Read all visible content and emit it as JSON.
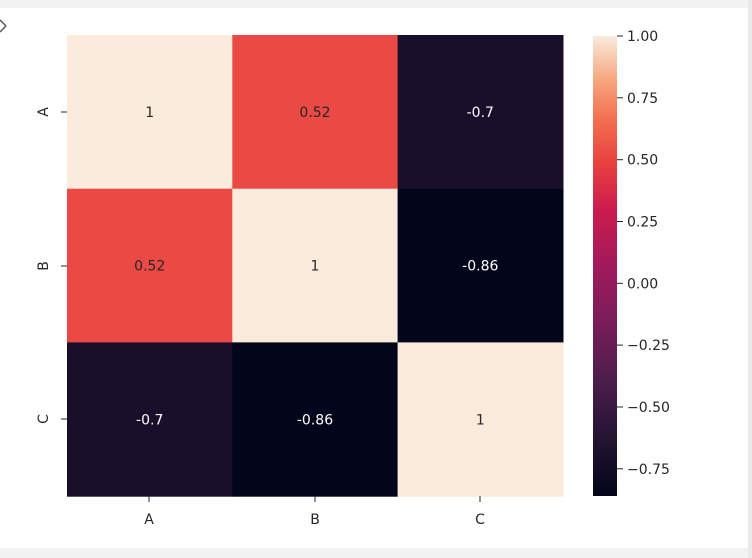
{
  "chart_data": {
    "type": "heatmap",
    "title": "",
    "xlabel": "",
    "ylabel": "",
    "x_categories": [
      "A",
      "B",
      "C"
    ],
    "y_categories": [
      "A",
      "B",
      "C"
    ],
    "values": [
      [
        1.0,
        0.52,
        -0.7
      ],
      [
        0.52,
        1.0,
        -0.86
      ],
      [
        -0.7,
        -0.86,
        1.0
      ]
    ],
    "annotations": [
      [
        "1",
        "0.52",
        "-0.7"
      ],
      [
        "0.52",
        "1",
        "-0.86"
      ],
      [
        "-0.7",
        "-0.86",
        "1"
      ]
    ],
    "colormap": "rocket",
    "colorbar": {
      "range": [
        -0.86,
        1.0
      ],
      "ticks": [
        1.0,
        0.75,
        0.5,
        0.25,
        0.0,
        -0.25,
        -0.5,
        -0.75
      ],
      "tick_labels": [
        "1.00",
        "0.75",
        "0.50",
        "0.25",
        "0.00",
        "−0.25",
        "−0.50",
        "−0.75"
      ]
    },
    "grid": false,
    "legend": "none"
  }
}
